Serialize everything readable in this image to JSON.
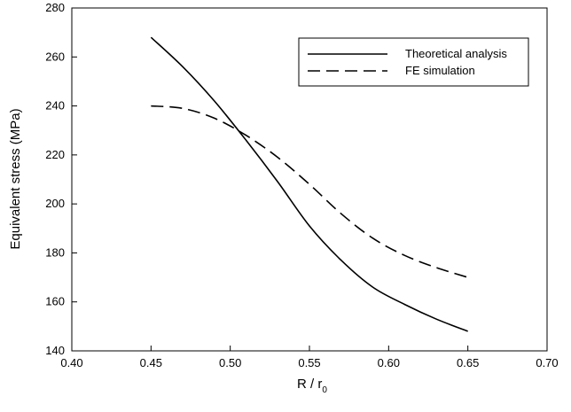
{
  "chart_data": {
    "type": "line",
    "xlabel": "R / r",
    "xlabel_subscript": "0",
    "ylabel": "Equivalent stress (MPa)",
    "xlim": [
      0.4,
      0.7
    ],
    "ylim": [
      140,
      280
    ],
    "x_ticks": [
      "0.40",
      "0.45",
      "0.50",
      "0.55",
      "0.60",
      "0.65",
      "0.70"
    ],
    "y_ticks": [
      "140",
      "160",
      "180",
      "200",
      "220",
      "240",
      "260",
      "280"
    ],
    "grid": false,
    "legend_position": "top-right",
    "series": [
      {
        "name": "Theoretical analysis",
        "style": "solid",
        "color": "#000000",
        "x": [
          0.45,
          0.47,
          0.49,
          0.51,
          0.53,
          0.55,
          0.57,
          0.59,
          0.61,
          0.63,
          0.65
        ],
        "y": [
          268,
          256,
          242,
          226,
          209,
          191,
          177,
          166,
          159,
          153,
          148
        ]
      },
      {
        "name": "FE simulation",
        "style": "dashed",
        "color": "#000000",
        "x": [
          0.45,
          0.47,
          0.49,
          0.51,
          0.53,
          0.55,
          0.57,
          0.59,
          0.61,
          0.63,
          0.65
        ],
        "y": [
          240,
          239,
          235,
          228,
          219,
          208,
          196,
          186,
          179,
          174,
          170
        ]
      }
    ]
  }
}
